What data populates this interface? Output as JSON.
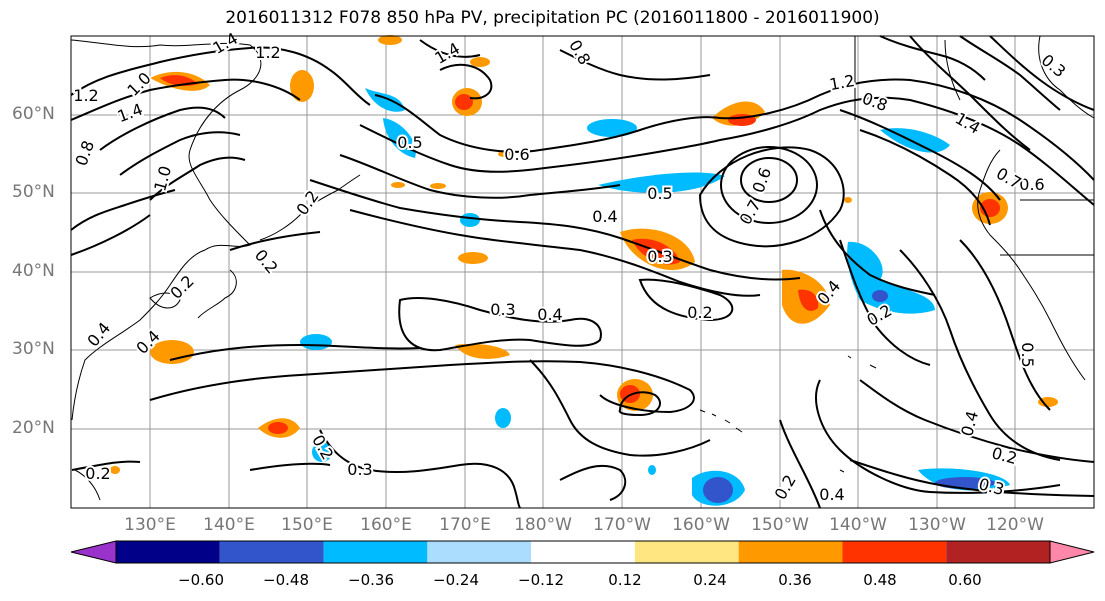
{
  "title": "2016011312 F078 850 hPa PV, precipitation PC (2016011800 - 2016011900)",
  "lat_labels": [
    "60°N",
    "50°N",
    "40°N",
    "30°N",
    "20°N"
  ],
  "lon_labels": [
    "130°E",
    "140°E",
    "150°E",
    "160°E",
    "170°E",
    "180°W",
    "170°W",
    "160°W",
    "150°W",
    "140°W",
    "130°W",
    "120°W"
  ],
  "colorbar": {
    "ticks": [
      "−0.60",
      "−0.48",
      "−0.36",
      "−0.24",
      "−0.12",
      "0.12",
      "0.24",
      "0.36",
      "0.48",
      "0.60"
    ],
    "colors": [
      "#9933cc",
      "#000088",
      "#3355cc",
      "#00bbff",
      "#aaddff",
      "#ffffff",
      "#ffe680",
      "#ff9900",
      "#ff3300",
      "#b22222",
      "#ff88aa"
    ]
  },
  "contour_labels": [
    "1.4",
    "1.2",
    "1.0",
    "1.4",
    "1.2",
    "1.4",
    "0.8",
    "0.8",
    "1.0",
    "0.2",
    "0.6",
    "0.5",
    "0.5",
    "0.7",
    "0.4",
    "0.3",
    "0.6",
    "1.2",
    "0.8",
    "1.4",
    "0.3",
    "0.6",
    "0.7",
    "0.2",
    "0.2",
    "0.4",
    "0.4",
    "0.3",
    "0.4",
    "0.2",
    "0.4",
    "0.2",
    "0.2",
    "0.3",
    "0.5",
    "0.4",
    "0.2",
    "0.3",
    "0.2",
    "0.4",
    "0.2"
  ]
}
